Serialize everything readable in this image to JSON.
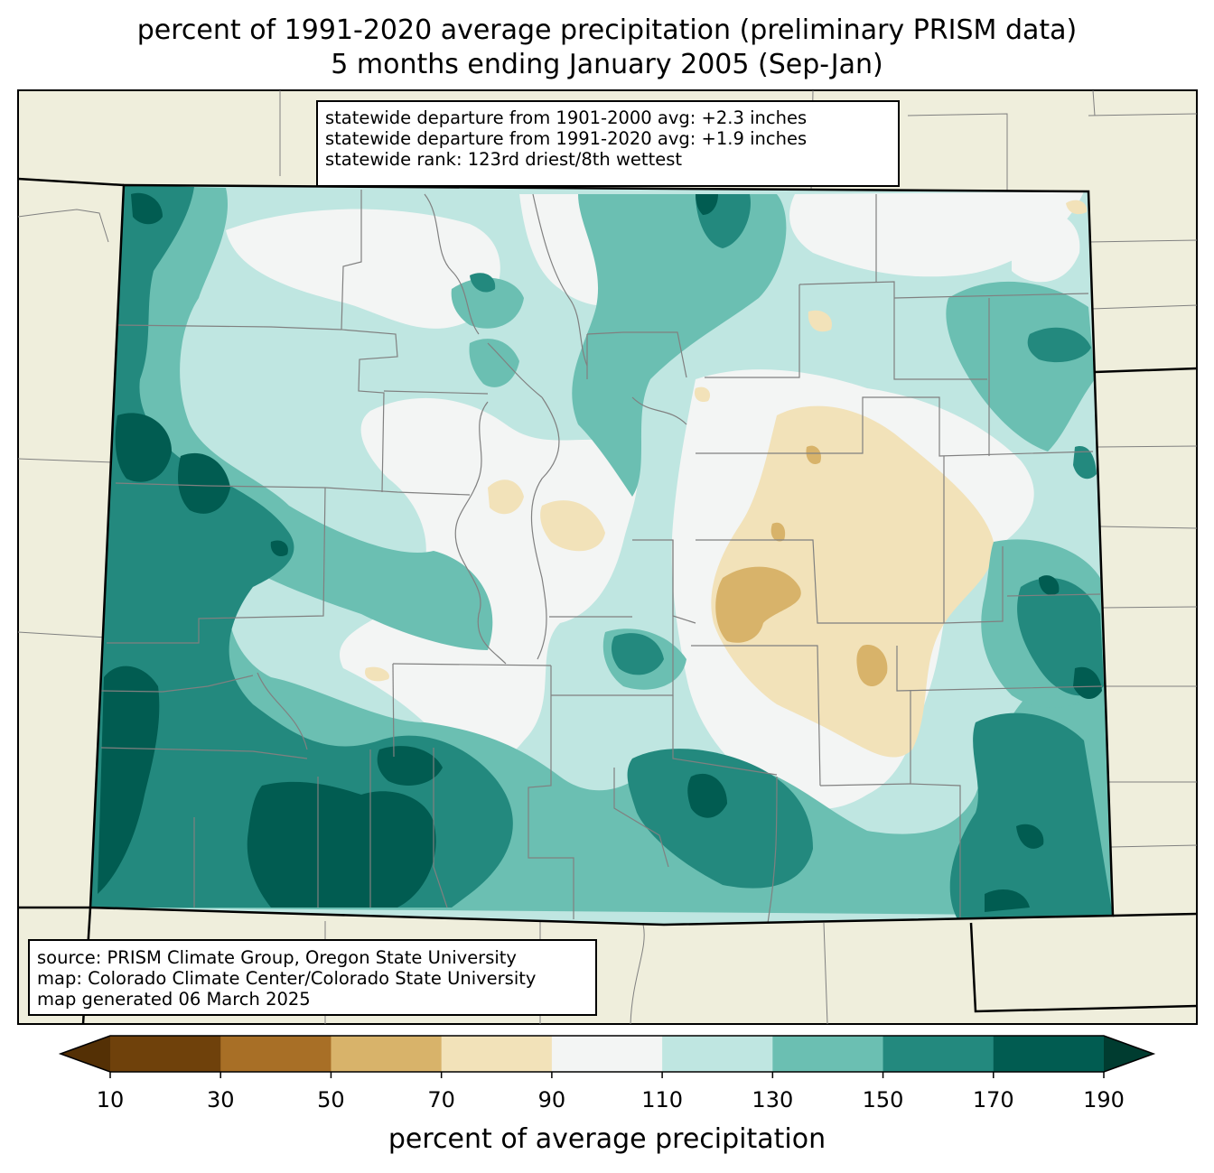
{
  "title": {
    "line1": "percent of 1991-2020 average precipitation (preliminary PRISM data)",
    "line2": "5 months ending January 2005 (Sep-Jan)"
  },
  "stats": {
    "line1": "statewide departure from 1901-2000 avg: +2.3 inches",
    "line2": "statewide departure from 1991-2020 avg: +1.9 inches",
    "line3": "statewide rank: 123rd driest/8th wettest"
  },
  "source": {
    "line1": "source: PRISM Climate Group, Oregon State University",
    "line2": "map: Colorado Climate Center/Colorado State University",
    "line3": "map generated 06 March 2025"
  },
  "colorbar": {
    "label": "percent of average precipitation",
    "ticks": [
      "10",
      "30",
      "50",
      "70",
      "90",
      "110",
      "130",
      "150",
      "170",
      "190"
    ],
    "under_color": "#543005",
    "over_color": "#003c30",
    "bins": [
      {
        "range": "10-30",
        "color": "#6f410b"
      },
      {
        "range": "30-50",
        "color": "#a86f26"
      },
      {
        "range": "50-70",
        "color": "#d8b36a"
      },
      {
        "range": "70-90",
        "color": "#f2e2b9"
      },
      {
        "range": "90-110",
        "color": "#f3f5f4"
      },
      {
        "range": "110-130",
        "color": "#bfe6e1"
      },
      {
        "range": "130-150",
        "color": "#6bbfb2"
      },
      {
        "range": "150-170",
        "color": "#23897e"
      },
      {
        "range": "170-190",
        "color": "#015c51"
      }
    ]
  },
  "colors": {
    "land_background": "#efeedc",
    "state_border": "#000000",
    "county_border": "#808080"
  }
}
